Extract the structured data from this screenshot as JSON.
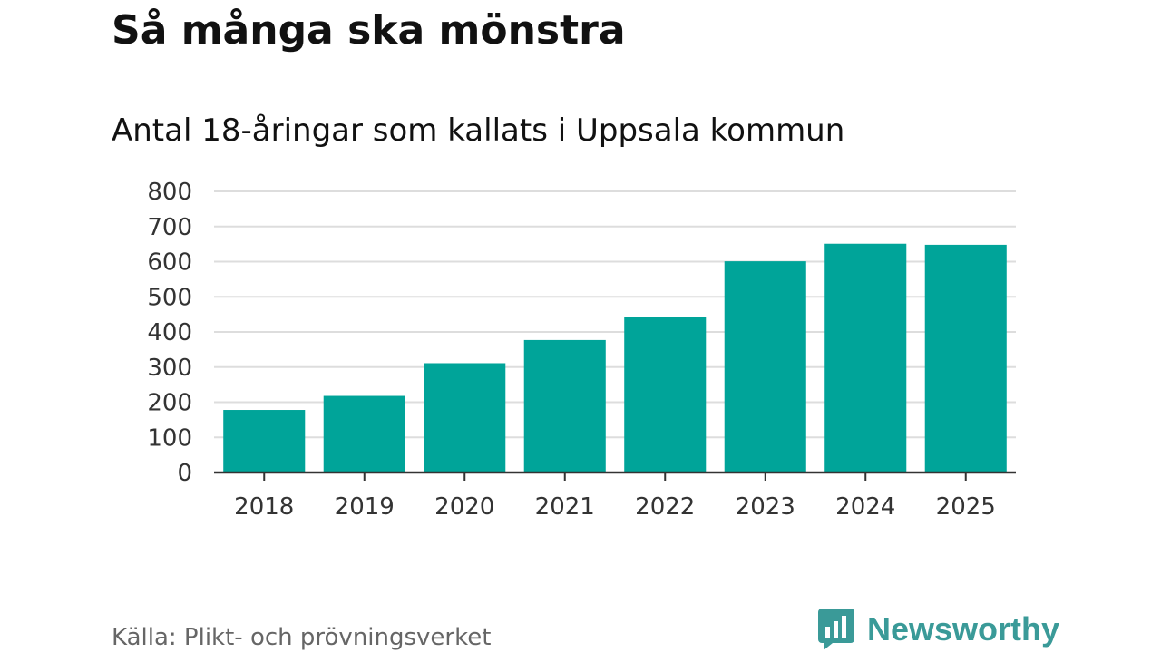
{
  "title": "Så många ska mönstra",
  "source": "Källa: Plikt- och prövningsverket",
  "brand": {
    "name": "Newsworthy",
    "icon": "newsworthy-logo-icon",
    "color": "#3a9a98"
  },
  "chart_data": {
    "type": "bar",
    "title": "Antal 18-åringar som kallats i Uppsala kommun",
    "xlabel": "",
    "ylabel": "",
    "categories": [
      "2018",
      "2019",
      "2020",
      "2021",
      "2022",
      "2023",
      "2024",
      "2025"
    ],
    "values": [
      178,
      218,
      311,
      377,
      442,
      601,
      651,
      648
    ],
    "ylim": [
      0,
      800
    ],
    "yticks": [
      0,
      100,
      200,
      300,
      400,
      500,
      600,
      700,
      800
    ],
    "grid": true,
    "bar_color": "#00a499"
  }
}
